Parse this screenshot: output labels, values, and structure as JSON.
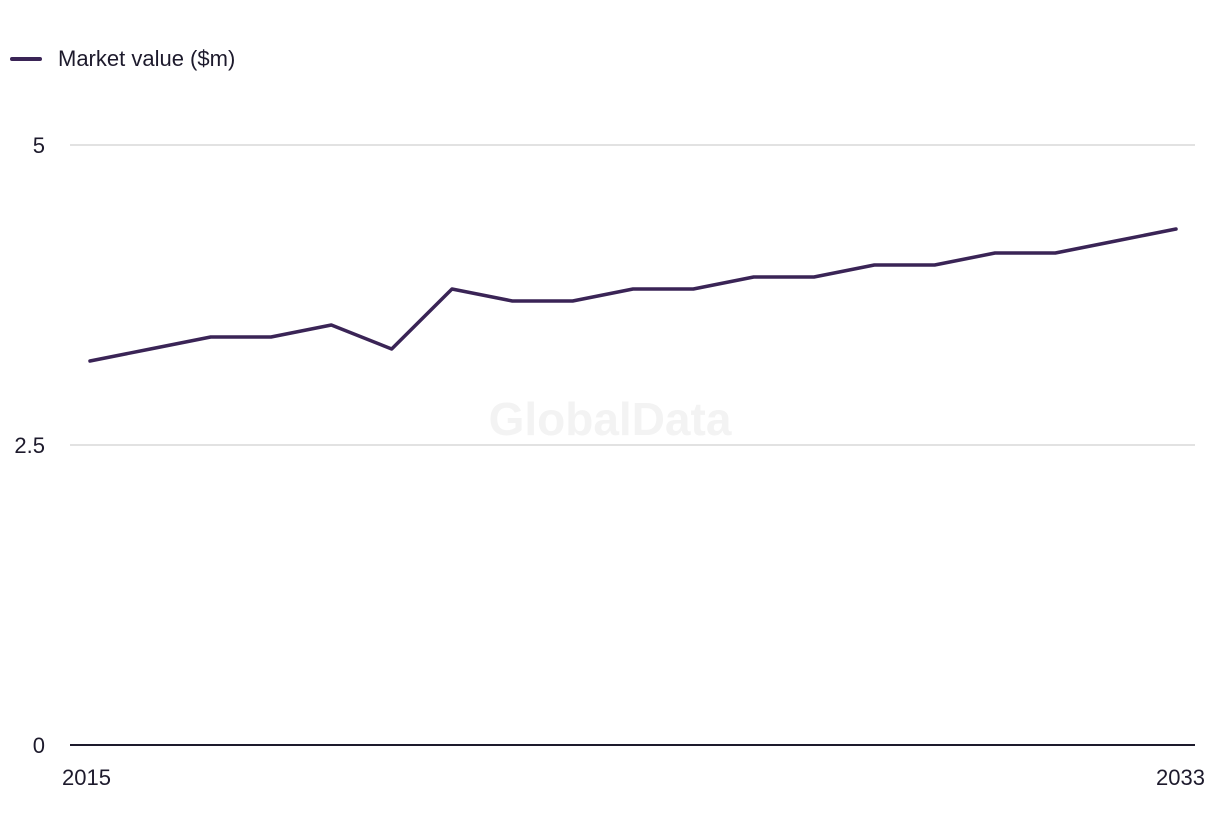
{
  "chart_data": {
    "type": "line",
    "title": "",
    "xlabel": "",
    "ylabel": "",
    "x": [
      2015,
      2016,
      2017,
      2018,
      2019,
      2020,
      2021,
      2022,
      2023,
      2024,
      2025,
      2026,
      2027,
      2028,
      2029,
      2030,
      2031,
      2032,
      2033
    ],
    "series": [
      {
        "name": "Market value ($m)",
        "color": "#3a2456",
        "values": [
          3.2,
          3.3,
          3.4,
          3.4,
          3.5,
          3.3,
          3.8,
          3.7,
          3.7,
          3.8,
          3.8,
          3.9,
          3.9,
          4.0,
          4.0,
          4.1,
          4.1,
          4.2,
          4.3
        ]
      }
    ],
    "xlim": [
      2015,
      2033
    ],
    "ylim": [
      0,
      5
    ],
    "x_tick_labels": [
      "2015",
      "2033"
    ],
    "y_tick_labels": [
      "0",
      "2.5",
      "5"
    ],
    "y_ticks": [
      0,
      2.5,
      5
    ],
    "grid": true,
    "legend_position": "top-left",
    "watermark": "GlobalData",
    "colors": {
      "line": "#3a2456",
      "grid": "#d9d9d9",
      "axis": "#1d1a2c"
    }
  }
}
